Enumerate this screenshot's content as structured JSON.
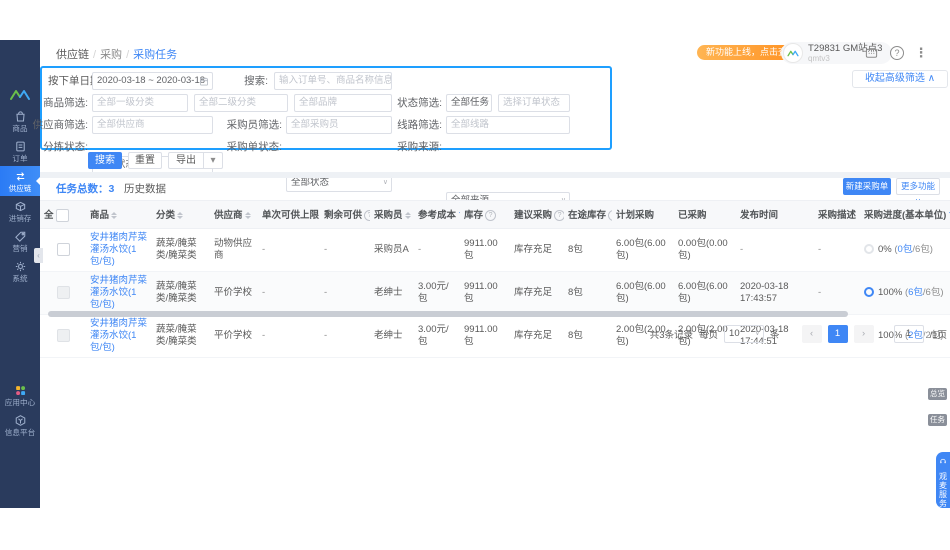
{
  "sidebar": {
    "items": [
      {
        "id": "goods",
        "icon": "goods-icon",
        "label": "商品",
        "active": false
      },
      {
        "id": "orders",
        "icon": "orders-icon",
        "label": "订单",
        "active": false
      },
      {
        "id": "supply-chain",
        "icon": "supply-chain-icon",
        "label": "供应链",
        "active": true
      },
      {
        "id": "inventory",
        "icon": "inventory-icon",
        "label": "进销存",
        "active": false
      },
      {
        "id": "marketing",
        "icon": "marketing-icon",
        "label": "营销",
        "active": false
      },
      {
        "id": "system",
        "icon": "system-icon",
        "label": "系统",
        "active": false
      }
    ],
    "bottom_items": [
      {
        "id": "app-center",
        "icon": "app-center-icon",
        "label": "应用中心",
        "active": false
      },
      {
        "id": "info-platform",
        "icon": "info-platform-icon",
        "label": "信息平台",
        "active": false
      }
    ]
  },
  "header": {
    "breadcrumb": [
      "供应链",
      "采购",
      "采购任务"
    ],
    "promo": "新功能上线，点击查看",
    "user": {
      "name": "T29831 GM站点3",
      "sub": "qmtv3"
    }
  },
  "filters": {
    "date_mode": "按下单日期",
    "date_value": "2020-03-18 ~ 2020-03-18",
    "search_label": "搜索:",
    "search_ph": "输入订单号、商品名称信息搜索",
    "goods_label": "商品筛选:",
    "cat1_ph": "全部一级分类",
    "cat2_ph": "全部二级分类",
    "brand_ph": "全部品牌",
    "status_label": "状态筛选:",
    "task_value": "全部任务",
    "order_status_ph": "选择订单状态",
    "supplier_label": "供应商筛选:",
    "supplier_ph": "全部供应商",
    "buyer_label": "采购员筛选:",
    "buyer_ph": "全部采购员",
    "route_label": "线路筛选:",
    "route_ph": "全部线路",
    "sort_label": "分拣状态:",
    "sort_value": "全部状态",
    "po_label": "采购单状态:",
    "po_value": "全部状态",
    "source_label": "采购来源:",
    "source_value": "全部来源",
    "collapse": "收起高级筛选 ∧"
  },
  "toolbar": {
    "search": "搜索",
    "reset": "重置",
    "export": "导出"
  },
  "tabs": {
    "total": "任务总数：3",
    "history": "历史数据",
    "create_btn": "新建采购单",
    "more_btn": "更多功能 ∨"
  },
  "table": {
    "select_all_label": "全",
    "paren_open": "(",
    "paren_close": ")",
    "columns": [
      {
        "key": "product",
        "label": "商品",
        "sort": true
      },
      {
        "key": "category",
        "label": "分类",
        "sort": true
      },
      {
        "key": "supplier",
        "label": "供应商",
        "sort": true
      },
      {
        "key": "max_supply",
        "label": "单次可供上限",
        "info": true
      },
      {
        "key": "remain_supply",
        "label": "剩余可供",
        "info": true
      },
      {
        "key": "buyer",
        "label": "采购员",
        "sort": true
      },
      {
        "key": "ref_cost",
        "label": "参考成本",
        "filter": true
      },
      {
        "key": "stock",
        "label": "库存",
        "info": true
      },
      {
        "key": "suggest",
        "label": "建议采购",
        "info": true
      },
      {
        "key": "transit",
        "label": "在途库存",
        "info": true
      },
      {
        "key": "plan",
        "label": "计划采购"
      },
      {
        "key": "purchased",
        "label": "已采购"
      },
      {
        "key": "publish_time",
        "label": "发布时间"
      },
      {
        "key": "desc",
        "label": "采购描述"
      },
      {
        "key": "progress",
        "label": "采购进度(基本单位)",
        "filter": true
      }
    ],
    "rows": [
      {
        "selectable": true,
        "product": "安井猪肉芹菜灌汤水饺(1包/包)",
        "category": "蔬菜/腌菜类/腌菜类",
        "supplier": "动物供应商",
        "max_supply": "-",
        "remain_supply": "-",
        "buyer": "采购员A",
        "ref_cost": "-",
        "stock": "9911.00包",
        "suggest": "库存充足",
        "transit": "8包",
        "plan": "6.00包(6.00包)",
        "purchased": "0.00包(0.00包)",
        "publish_time": "-",
        "desc": "-",
        "progress": {
          "pct": "0%",
          "link": "0包",
          "rest": "/6包",
          "full": false
        }
      },
      {
        "selectable": false,
        "product": "安井猪肉芹菜灌汤水饺(1包/包)",
        "category": "蔬菜/腌菜类/腌菜类",
        "supplier": "平价学校",
        "max_supply": "-",
        "remain_supply": "-",
        "buyer": "老绅士",
        "ref_cost": "3.00元/包",
        "stock": "9911.00包",
        "suggest": "库存充足",
        "transit": "8包",
        "plan": "6.00包(6.00包)",
        "purchased": "6.00包(6.00包)",
        "publish_time": "2020-03-18 17:43:57",
        "desc": "-",
        "progress": {
          "pct": "100%",
          "link": "6包",
          "rest": "/6包",
          "full": true
        }
      },
      {
        "selectable": false,
        "product": "安井猪肉芹菜灌汤水饺(1包/包)",
        "category": "蔬菜/腌菜类/腌菜类",
        "supplier": "平价学校",
        "max_supply": "-",
        "remain_supply": "-",
        "buyer": "老绅士",
        "ref_cost": "3.00元/包",
        "stock": "9911.00包",
        "suggest": "库存充足",
        "transit": "8包",
        "plan": "2.00包(2.00包)",
        "purchased": "2.00包(2.00包)",
        "publish_time": "2020-03-18 17:44:51",
        "desc": "-",
        "progress": {
          "pct": "100%",
          "link": "2包",
          "rest": "/2包",
          "full": true
        }
      }
    ]
  },
  "pagination": {
    "total": "共3条记录",
    "per_page_label": "每页",
    "per_page": "10",
    "unit": "条",
    "prev": "‹",
    "page": "1",
    "next": "›",
    "jump": "1",
    "total_pages": "/1页"
  },
  "floating": {
    "tags": [
      "总览",
      "任务"
    ],
    "service": "观麦服务"
  }
}
